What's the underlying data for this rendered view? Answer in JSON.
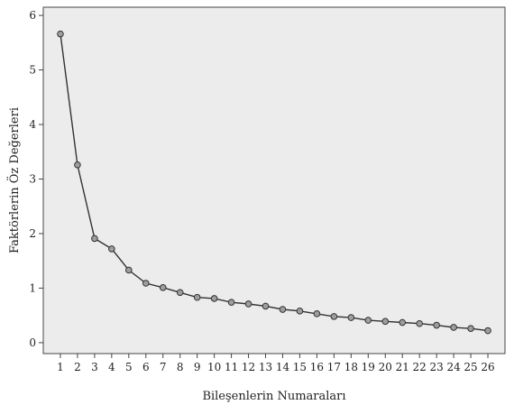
{
  "chart_data": {
    "type": "line",
    "title": "",
    "xlabel": "Bileşenlerin Numaraları",
    "ylabel": "Faktörlerin Öz Değerleri",
    "x": [
      1,
      2,
      3,
      4,
      5,
      6,
      7,
      8,
      9,
      10,
      11,
      12,
      13,
      14,
      15,
      16,
      17,
      18,
      19,
      20,
      21,
      22,
      23,
      24,
      25,
      26
    ],
    "values": [
      5.66,
      3.26,
      1.91,
      1.72,
      1.33,
      1.09,
      1.01,
      0.92,
      0.83,
      0.81,
      0.74,
      0.71,
      0.67,
      0.61,
      0.58,
      0.53,
      0.48,
      0.46,
      0.41,
      0.39,
      0.37,
      0.35,
      0.32,
      0.28,
      0.26,
      0.22
    ],
    "ylim": [
      -0.2,
      6.15
    ],
    "xlim": [
      0,
      27
    ],
    "y_ticks": [
      0,
      1,
      2,
      3,
      4,
      5,
      6
    ],
    "grid": false,
    "colors": {
      "plot_background": "#ececec",
      "line": "#333333",
      "marker_fill": "#9e9e9e"
    }
  }
}
